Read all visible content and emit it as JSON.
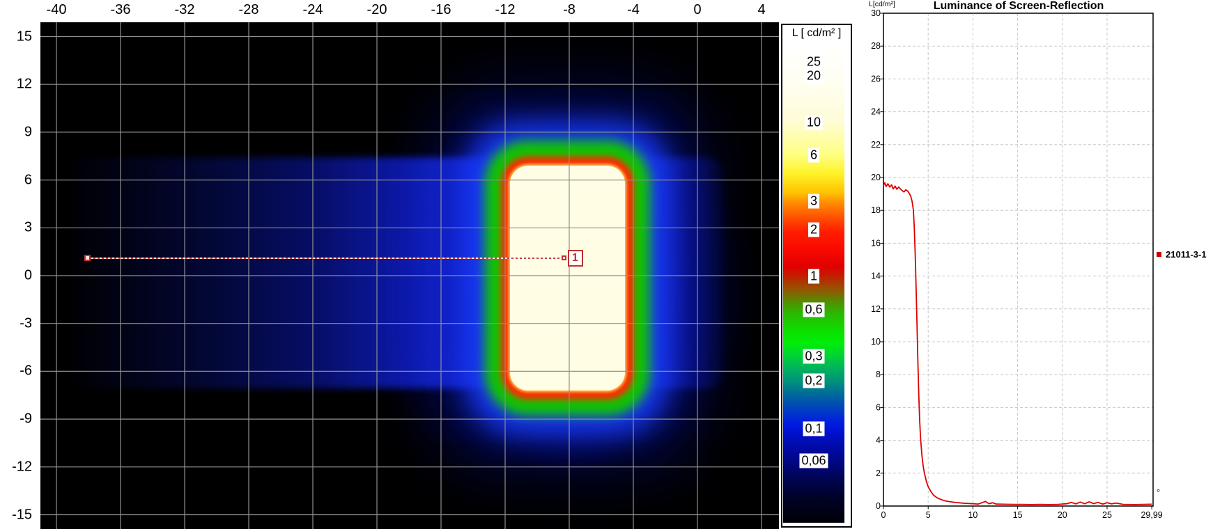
{
  "panels": {
    "heatmap": {
      "x_tick_labels": [
        "-40",
        "-36",
        "-32",
        "-28",
        "-24",
        "-20",
        "-16",
        "-12",
        "-8",
        "-4",
        "0",
        "4"
      ],
      "y_tick_labels": [
        "15",
        "12",
        "9",
        "6",
        "3",
        "0",
        "-3",
        "-6",
        "-9",
        "-12",
        "-15"
      ],
      "marker": {
        "id_label": "1"
      },
      "grid_color": "#8f8f8f"
    },
    "colorbar": {
      "title": "L [ cd/m² ]",
      "labels": [
        "25",
        "20",
        "10",
        "6",
        "3",
        "2",
        "1",
        "0,6",
        "0,3",
        "0,2",
        "0,1",
        "0,06"
      ]
    },
    "reflection_chart": {
      "title": "Luminance of Screen-Reflection",
      "y_axis_label": "L[cd/m²]",
      "x_axis_unit_symbol": "°",
      "legend": {
        "series_label": "21011-3-1",
        "marker_color": "#cc0000"
      },
      "x_tick_labels": [
        "0",
        "5",
        "10",
        "15",
        "20",
        "25",
        "29,99"
      ],
      "y_tick_labels": [
        "30",
        "28",
        "26",
        "24",
        "22",
        "20",
        "18",
        "16",
        "14",
        "12",
        "10",
        "8",
        "6",
        "4",
        "2",
        "0"
      ]
    }
  },
  "chart_data": [
    {
      "type": "heatmap",
      "title": "",
      "description": "False-color luminance map on black background: bright white-yellow core with red, green and blue halos and a horizontal blue band",
      "x_ticks": [
        -40,
        -36,
        -32,
        -28,
        -24,
        -20,
        -16,
        -12,
        -8,
        -4,
        0,
        4
      ],
      "y_ticks": [
        15,
        12,
        9,
        6,
        3,
        0,
        -3,
        -6,
        -9,
        -12,
        -15
      ],
      "xlim": [
        -41,
        5.1
      ],
      "ylim": [
        -16,
        16
      ],
      "grid": true,
      "colorbar": {
        "title": "L [ cd/m² ]",
        "tick_values_cd_m2": [
          25,
          20,
          10,
          6,
          3,
          2,
          1,
          0.6,
          0.3,
          0.2,
          0.1,
          0.06
        ]
      },
      "bright_region": {
        "x_range_deg": [
          -11.7,
          -4.5
        ],
        "y_range_deg": [
          -7.2,
          6.9
        ],
        "level": "> 20 cd/m²"
      },
      "measurement_line": {
        "marker_label": "1",
        "y_deg": 1.1,
        "x_start_deg": -38.1,
        "x_end_deg": -8.5
      }
    },
    {
      "type": "line",
      "title": "Luminance of Screen-Reflection",
      "ylabel": "L[cd/m²]",
      "x_unit": "°",
      "xlim": [
        0,
        29.99
      ],
      "ylim": [
        0,
        30
      ],
      "x_tick_values": [
        0,
        5,
        10,
        15,
        20,
        25,
        29.99
      ],
      "y_tick_values": [
        30,
        28,
        26,
        24,
        22,
        20,
        18,
        16,
        14,
        12,
        10,
        8,
        6,
        4,
        2,
        0
      ],
      "grid": "dashed",
      "legend_position": "right",
      "series": [
        {
          "name": "21011-3-1",
          "color": "#dd0000",
          "points": [
            [
              0,
              19.5
            ],
            [
              0.15,
              19.68
            ],
            [
              0.3,
              19.45
            ],
            [
              0.5,
              19.62
            ],
            [
              0.7,
              19.42
            ],
            [
              0.9,
              19.55
            ],
            [
              1.1,
              19.3
            ],
            [
              1.3,
              19.48
            ],
            [
              1.5,
              19.28
            ],
            [
              1.7,
              19.42
            ],
            [
              1.9,
              19.3
            ],
            [
              2.1,
              19.2
            ],
            [
              2.3,
              19.12
            ],
            [
              2.5,
              19.25
            ],
            [
              2.7,
              19.18
            ],
            [
              2.9,
              19.02
            ],
            [
              3.05,
              18.85
            ],
            [
              3.2,
              18.55
            ],
            [
              3.35,
              18.0
            ],
            [
              3.45,
              16.9
            ],
            [
              3.55,
              15.3
            ],
            [
              3.65,
              13.2
            ],
            [
              3.75,
              11.0
            ],
            [
              3.85,
              8.8
            ],
            [
              3.95,
              6.8
            ],
            [
              4.05,
              5.2
            ],
            [
              4.15,
              4.1
            ],
            [
              4.3,
              3.1
            ],
            [
              4.45,
              2.4
            ],
            [
              4.6,
              1.95
            ],
            [
              4.8,
              1.5
            ],
            [
              5.0,
              1.18
            ],
            [
              5.3,
              0.88
            ],
            [
              5.6,
              0.66
            ],
            [
              6.0,
              0.5
            ],
            [
              6.5,
              0.38
            ],
            [
              7.0,
              0.3
            ],
            [
              7.5,
              0.26
            ],
            [
              8.0,
              0.22
            ],
            [
              9.0,
              0.17
            ],
            [
              10.0,
              0.14
            ],
            [
              10.6,
              0.12
            ],
            [
              11.0,
              0.2
            ],
            [
              11.4,
              0.28
            ],
            [
              11.8,
              0.14
            ],
            [
              12.2,
              0.2
            ],
            [
              12.6,
              0.12
            ],
            [
              13.5,
              0.11
            ],
            [
              14.5,
              0.1
            ],
            [
              15.5,
              0.1
            ],
            [
              16.5,
              0.09
            ],
            [
              17.5,
              0.1
            ],
            [
              18.5,
              0.09
            ],
            [
              19.5,
              0.1
            ],
            [
              20.5,
              0.14
            ],
            [
              21.0,
              0.22
            ],
            [
              21.5,
              0.13
            ],
            [
              22.0,
              0.24
            ],
            [
              22.5,
              0.14
            ],
            [
              23.0,
              0.26
            ],
            [
              23.5,
              0.15
            ],
            [
              24.0,
              0.22
            ],
            [
              24.5,
              0.12
            ],
            [
              25.0,
              0.2
            ],
            [
              25.5,
              0.13
            ],
            [
              26.0,
              0.18
            ],
            [
              26.8,
              0.1
            ],
            [
              28.0,
              0.09
            ],
            [
              29.0,
              0.1
            ],
            [
              29.99,
              0.11
            ]
          ]
        }
      ]
    }
  ]
}
